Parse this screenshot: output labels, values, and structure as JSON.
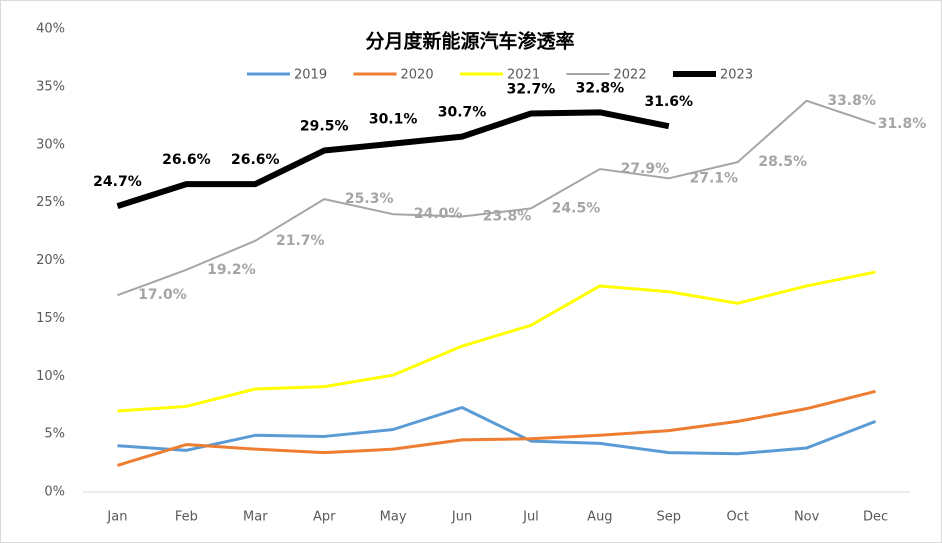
{
  "chart_data": {
    "type": "line",
    "title": "分月度新能源汽车渗透率",
    "categories": [
      "Jan",
      "Feb",
      "Mar",
      "Apr",
      "May",
      "Jun",
      "Jul",
      "Aug",
      "Sep",
      "Oct",
      "Nov",
      "Dec"
    ],
    "series": [
      {
        "name": "2019",
        "color": "#5b9bd5",
        "line_width": 3,
        "values": [
          4.0,
          3.6,
          4.9,
          4.8,
          5.4,
          7.3,
          4.4,
          4.2,
          3.4,
          3.3,
          3.8,
          6.1
        ]
      },
      {
        "name": "2020",
        "color": "#ed7d31",
        "line_width": 3,
        "values": [
          2.3,
          4.1,
          3.7,
          3.4,
          3.7,
          4.5,
          4.6,
          4.9,
          5.3,
          6.1,
          7.2,
          8.7
        ]
      },
      {
        "name": "2021",
        "color": "#ffff00",
        "line_width": 3,
        "values": [
          7.0,
          7.4,
          8.9,
          9.1,
          10.1,
          12.6,
          14.4,
          17.8,
          17.3,
          16.3,
          17.8,
          19.0
        ]
      },
      {
        "name": "2022",
        "color": "#a5a5a5",
        "line_width": 2,
        "values": [
          17.0,
          19.2,
          21.7,
          25.3,
          24.0,
          23.8,
          24.5,
          27.9,
          27.1,
          28.5,
          33.8,
          31.8
        ],
        "value_labels": [
          "17.0%",
          "19.2%",
          "21.7%",
          "25.3%",
          "24.0%",
          "23.8%",
          "24.5%",
          "27.9%",
          "27.1%",
          "28.5%",
          "33.8%",
          "31.8%"
        ]
      },
      {
        "name": "2023",
        "color": "#000000",
        "line_width": 6,
        "values": [
          24.7,
          26.6,
          26.6,
          29.5,
          30.1,
          30.7,
          32.7,
          32.8,
          31.6,
          null,
          null,
          null
        ],
        "value_labels": [
          "24.7%",
          "26.6%",
          "26.6%",
          "29.5%",
          "30.1%",
          "30.7%",
          "32.7%",
          "32.8%",
          "31.6%",
          null,
          null,
          null
        ]
      }
    ],
    "ylim": [
      0,
      40
    ],
    "yticks": [
      {
        "value": 0,
        "label": "0%"
      },
      {
        "value": 5,
        "label": "5%"
      },
      {
        "value": 10,
        "label": "10%"
      },
      {
        "value": 15,
        "label": "15%"
      },
      {
        "value": 20,
        "label": "20%"
      },
      {
        "value": 25,
        "label": "25%"
      },
      {
        "value": 30,
        "label": "30%"
      },
      {
        "value": 35,
        "label": "35%"
      },
      {
        "value": 40,
        "label": "40%"
      }
    ],
    "legend": "top"
  }
}
